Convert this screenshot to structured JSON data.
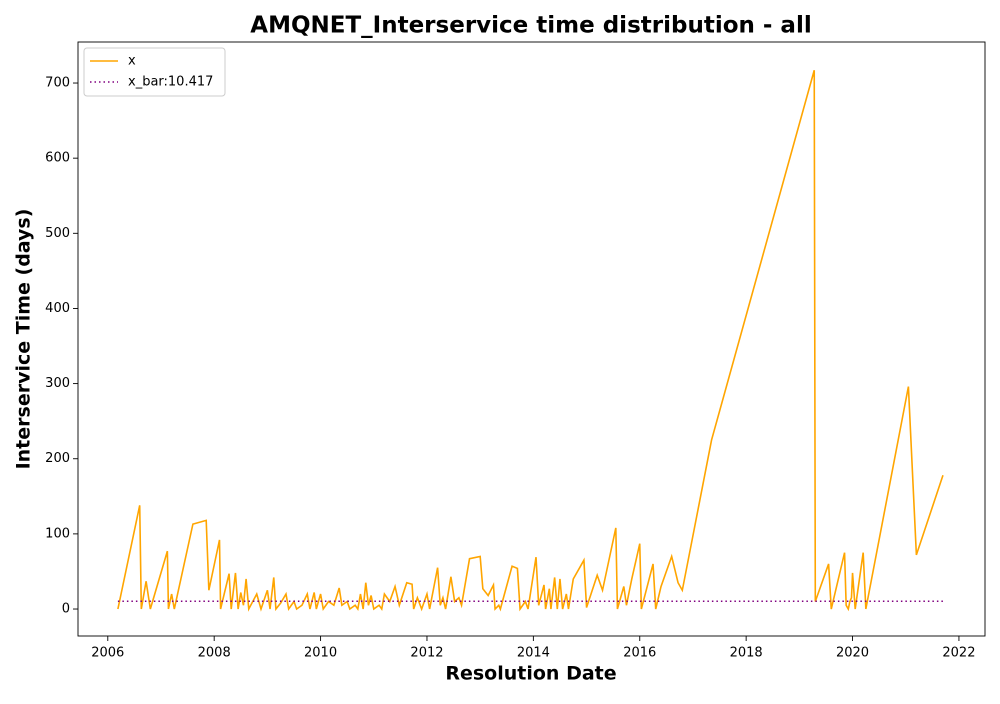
{
  "chart_data": {
    "type": "line",
    "title": "AMQNET_Interservice time distribution - all",
    "xlabel": "Resolution Date",
    "ylabel": "Interservice Time (days)",
    "xlim": [
      2005.44,
      2022.49
    ],
    "ylim": [
      -35.9,
      754.6
    ],
    "xticks": [
      2006,
      2008,
      2010,
      2012,
      2014,
      2016,
      2018,
      2020,
      2022
    ],
    "yticks": [
      0,
      100,
      200,
      300,
      400,
      500,
      600,
      700
    ],
    "grid": false,
    "legend": "upper left",
    "series": [
      {
        "name": "x",
        "color": "#ffa500",
        "style": "solid",
        "x": [
          2006.19,
          2006.6,
          2006.63,
          2006.72,
          2006.8,
          2007.12,
          2007.14,
          2007.2,
          2007.25,
          2007.6,
          2007.85,
          2007.9,
          2008.1,
          2008.12,
          2008.28,
          2008.32,
          2008.4,
          2008.45,
          2008.5,
          2008.55,
          2008.6,
          2008.65,
          2008.8,
          2008.88,
          2009.0,
          2009.05,
          2009.12,
          2009.16,
          2009.25,
          2009.35,
          2009.4,
          2009.5,
          2009.55,
          2009.65,
          2009.75,
          2009.8,
          2009.88,
          2009.92,
          2010.0,
          2010.05,
          2010.15,
          2010.25,
          2010.35,
          2010.4,
          2010.5,
          2010.55,
          2010.65,
          2010.7,
          2010.75,
          2010.8,
          2010.85,
          2010.9,
          2010.95,
          2011.0,
          2011.1,
          2011.15,
          2011.2,
          2011.3,
          2011.4,
          2011.48,
          2011.62,
          2011.72,
          2011.75,
          2011.82,
          2011.9,
          2012.0,
          2012.05,
          2012.2,
          2012.25,
          2012.3,
          2012.35,
          2012.45,
          2012.52,
          2012.6,
          2012.65,
          2012.8,
          2013.0,
          2013.05,
          2013.15,
          2013.25,
          2013.28,
          2013.35,
          2013.38,
          2013.6,
          2013.7,
          2013.75,
          2013.85,
          2013.9,
          2014.05,
          2014.1,
          2014.2,
          2014.23,
          2014.3,
          2014.33,
          2014.4,
          2014.45,
          2014.5,
          2014.55,
          2014.62,
          2014.66,
          2014.75,
          2014.95,
          2015.0,
          2015.2,
          2015.3,
          2015.55,
          2015.58,
          2015.7,
          2015.75,
          2015.85,
          2016.0,
          2016.03,
          2016.25,
          2016.3,
          2016.4,
          2016.6,
          2016.72,
          2016.8,
          2017.35,
          2019.28,
          2019.3,
          2019.55,
          2019.6,
          2019.85,
          2019.88,
          2019.92,
          2019.95,
          2019.98,
          2020.0,
          2020.05,
          2020.2,
          2020.25,
          2021.05,
          2021.2,
          2021.7
        ],
        "values": [
          0,
          138,
          0,
          37,
          0,
          77,
          0,
          20,
          0,
          113,
          118,
          25,
          92,
          0,
          47,
          0,
          48,
          0,
          22,
          5,
          40,
          0,
          20,
          0,
          25,
          0,
          42,
          0,
          8,
          20,
          0,
          10,
          0,
          5,
          20,
          0,
          22,
          0,
          20,
          0,
          10,
          5,
          28,
          5,
          10,
          0,
          5,
          0,
          20,
          0,
          35,
          5,
          18,
          0,
          5,
          0,
          20,
          10,
          30,
          5,
          35,
          33,
          0,
          15,
          0,
          20,
          0,
          55,
          5,
          15,
          0,
          43,
          10,
          15,
          5,
          67,
          70,
          27,
          18,
          32,
          0,
          5,
          0,
          57,
          54,
          0,
          10,
          0,
          69,
          5,
          32,
          0,
          27,
          0,
          42,
          0,
          40,
          0,
          20,
          0,
          40,
          65,
          2,
          45,
          25,
          108,
          0,
          30,
          5,
          40,
          87,
          0,
          60,
          0,
          30,
          70,
          35,
          25,
          225,
          717,
          10,
          60,
          0,
          75,
          5,
          0,
          10,
          15,
          48,
          0,
          75,
          0,
          296,
          72,
          178
        ]
      },
      {
        "name": "x_bar:10.417",
        "color": "#800080",
        "style": "dotted",
        "x": [
          2006.19,
          2021.7
        ],
        "values": [
          10.417,
          10.417
        ]
      }
    ]
  }
}
